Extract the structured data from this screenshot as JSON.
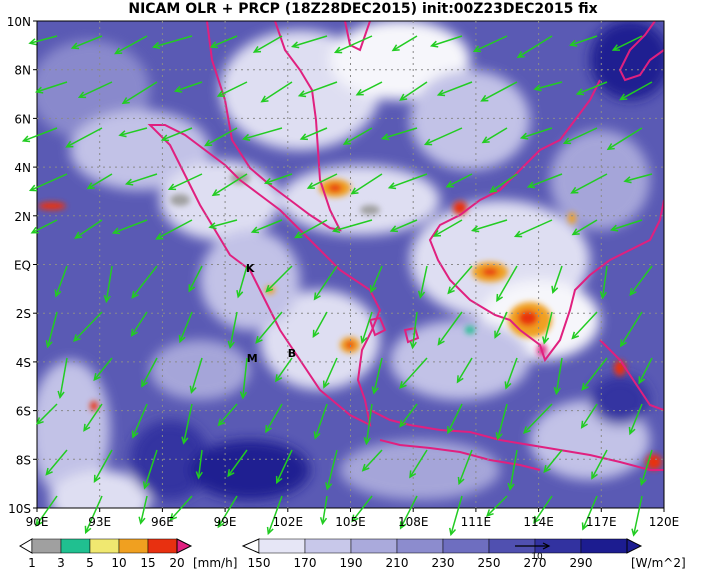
{
  "title": "NICAM OLR + PRCP (18Z28DEC2015) init:00Z23DEC2015 fix",
  "map": {
    "lat_labels": [
      "10N",
      "8N",
      "6N",
      "4N",
      "2N",
      "EQ",
      "2S",
      "4S",
      "6S",
      "8S",
      "10S"
    ],
    "lon_labels": [
      "90E",
      "93E",
      "96E",
      "99E",
      "102E",
      "105E",
      "108E",
      "111E",
      "114E",
      "117E",
      "120E"
    ],
    "lon_range": [
      90,
      120
    ],
    "lat_range": [
      -10,
      10
    ],
    "grid": true,
    "markers": [
      {
        "label": "K",
        "lon": 100.2,
        "lat": -0.3
      },
      {
        "label": "M",
        "lon": 100.3,
        "lat": -4.0
      },
      {
        "label": "B",
        "lon": 102.2,
        "lat": -3.8
      }
    ],
    "coastline_color": "#e0207f",
    "wind_vector_color": "#22cc22"
  },
  "precip_colorbar": {
    "ticks": [
      "1",
      "3",
      "5",
      "10",
      "15",
      "20"
    ],
    "unit": "[mm/h]",
    "colors": [
      "#ffffff",
      "#a0a0a0",
      "#20c090",
      "#f0e870",
      "#f0a020",
      "#e83010",
      "#e02080"
    ]
  },
  "olr_colorbar": {
    "ticks": [
      "150",
      "170",
      "190",
      "210",
      "230",
      "250",
      "270",
      "290"
    ],
    "unit": "[W/m^2]",
    "reference_vector_label": "10",
    "colors": [
      "#ffffff",
      "#e6e6f6",
      "#c8c8ea",
      "#aaaadc",
      "#8c8cce",
      "#6e6ec0",
      "#5050b0",
      "#3232a0",
      "#1c1c90"
    ]
  }
}
